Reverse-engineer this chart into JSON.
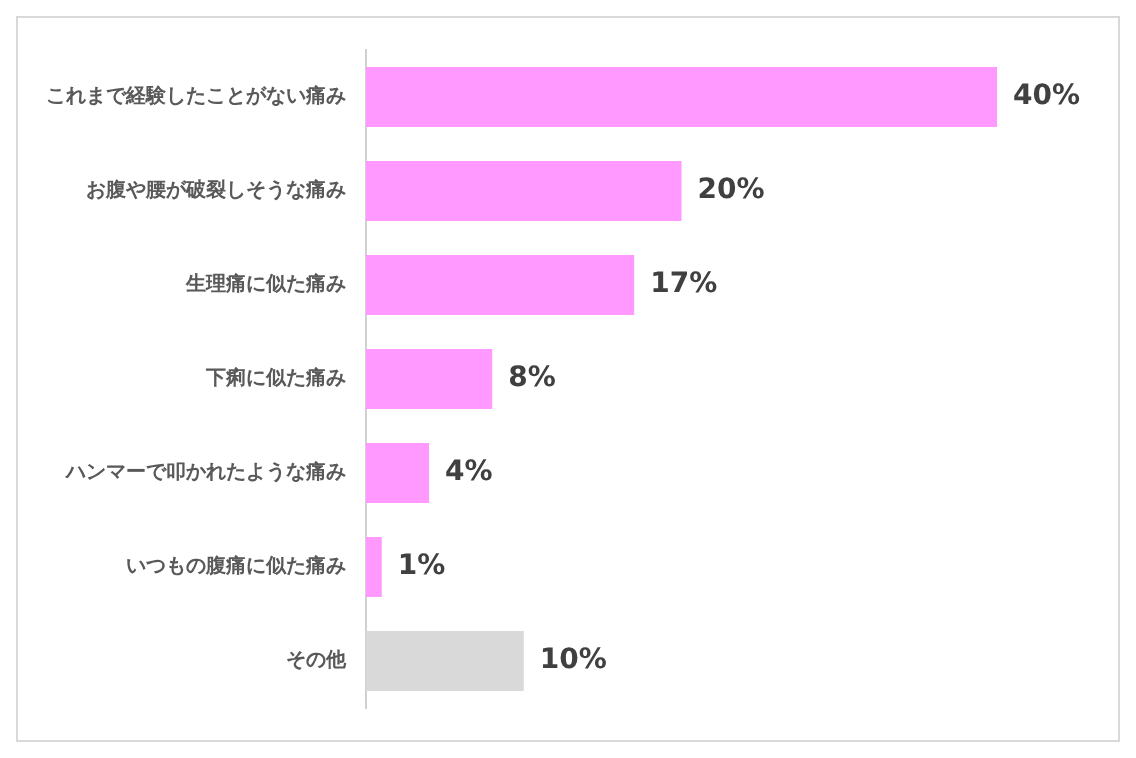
{
  "chart_data": {
    "type": "bar",
    "orientation": "horizontal",
    "categories": [
      "これまで経験したことがない痛み",
      "お腹や腰が破裂しそうな痛み",
      "生理痛に似た痛み",
      "下痢に似た痛み",
      "ハンマーで叩かれたような痛み",
      "いつもの腹痛に似た痛み",
      "その他"
    ],
    "values": [
      40,
      20,
      17,
      8,
      4,
      1,
      10
    ],
    "value_labels": [
      "40%",
      "20%",
      "17%",
      "8%",
      "4%",
      "1%",
      "10%"
    ],
    "colors": [
      "#ff99ff",
      "#ff99ff",
      "#ff99ff",
      "#ff99ff",
      "#ff99ff",
      "#ff99ff",
      "#d9d9d9"
    ],
    "grid": false,
    "tick_labels": "y",
    "legend": false
  }
}
